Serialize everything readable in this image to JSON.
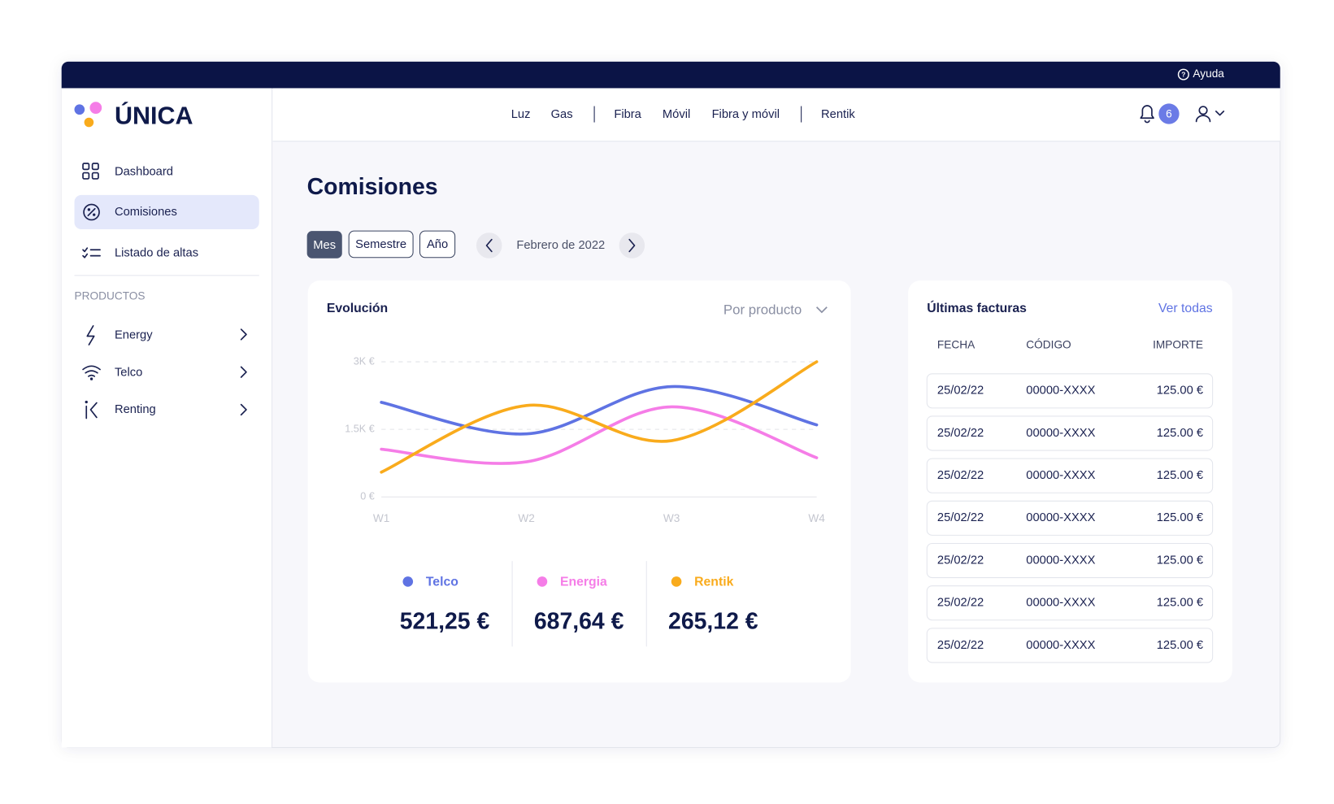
{
  "topbar": {
    "help": "Ayuda"
  },
  "brand": "ÚNICA",
  "sidebar": {
    "items": [
      "Dashboard",
      "Comisiones",
      "Listado de altas"
    ],
    "section": "PRODUCTOS",
    "products": [
      "Energy",
      "Telco",
      "Renting"
    ]
  },
  "nav": {
    "links": [
      "Luz",
      "Gas",
      "Fibra",
      "Móvil",
      "Fibra y móvil",
      "Rentik"
    ],
    "notifications": "6"
  },
  "page_title": "Comisiones",
  "period": {
    "tabs": [
      "Mes",
      "Semestre",
      "Año"
    ],
    "current": "Febrero de 2022"
  },
  "chart_data": {
    "type": "line",
    "title": "Evolución",
    "filter": "Por producto",
    "categories": [
      "W1",
      "W2",
      "W3",
      "W4"
    ],
    "ylim": [
      0,
      3000
    ],
    "yticks": [
      {
        "value": 0,
        "label": "0 €"
      },
      {
        "value": 1500,
        "label": "1.5K €"
      },
      {
        "value": 3000,
        "label": "3K €"
      }
    ],
    "grid": true,
    "series": [
      {
        "name": "Telco",
        "color": "#5f73e3",
        "values": [
          2100,
          1400,
          2450,
          1600
        ],
        "total": "521,25 €"
      },
      {
        "name": "Energia",
        "color": "#f57de7",
        "values": [
          1060,
          780,
          2000,
          870
        ],
        "total": "687,64 €"
      },
      {
        "name": "Rentik",
        "color": "#f9ab1c",
        "values": [
          550,
          2030,
          1250,
          3000
        ],
        "total": "265,12 €"
      }
    ]
  },
  "invoices": {
    "title": "Últimas facturas",
    "link": "Ver todas",
    "header": [
      "FECHA",
      "CÓDIGO",
      "IMPORTE"
    ],
    "rows": [
      [
        "25/02/22",
        "00000-XXXX",
        "125.00 €"
      ],
      [
        "25/02/22",
        "00000-XXXX",
        "125.00 €"
      ],
      [
        "25/02/22",
        "00000-XXXX",
        "125.00 €"
      ],
      [
        "25/02/22",
        "00000-XXXX",
        "125.00 €"
      ],
      [
        "25/02/22",
        "00000-XXXX",
        "125.00 €"
      ],
      [
        "25/02/22",
        "00000-XXXX",
        "125.00 €"
      ],
      [
        "25/02/22",
        "00000-XXXX",
        "125.00 €"
      ]
    ]
  }
}
